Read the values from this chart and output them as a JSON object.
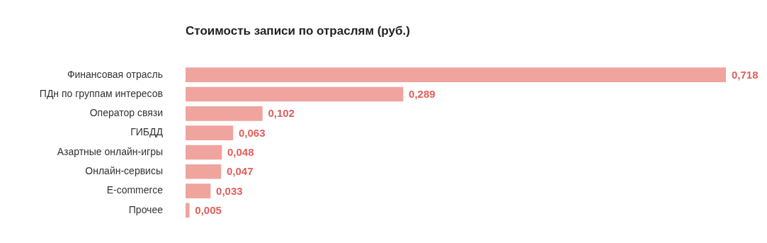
{
  "chart_data": {
    "type": "bar",
    "orientation": "horizontal",
    "title": "Стоимость записи по отраслям (руб.)",
    "categories": [
      "Финансовая отрасль",
      "ПДн по группам интересов",
      "Оператор связи",
      "ГИБДД",
      "Азартные онлайн-игры",
      "Онлайн-сервисы",
      "E-commerce",
      "Прочее"
    ],
    "values": [
      0.718,
      0.289,
      0.102,
      0.063,
      0.048,
      0.047,
      0.033,
      0.005
    ],
    "value_labels": [
      "0,718",
      "0,289",
      "0,102",
      "0,063",
      "0,048",
      "0,047",
      "0,033",
      "0,005"
    ],
    "color": "#f0a49e",
    "tick_labels": "y",
    "legend": false
  }
}
